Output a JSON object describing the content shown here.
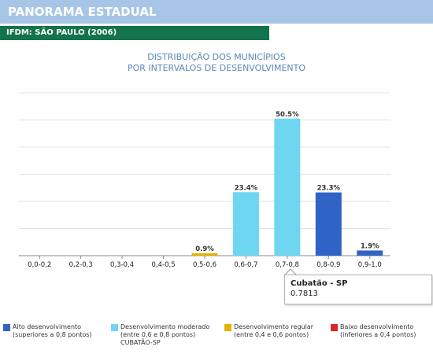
{
  "header": {
    "banner_title": "PANORAMA ESTADUAL",
    "subtitle": "IFDM: SÃO PAULO (2006)"
  },
  "chart_data": {
    "type": "bar",
    "title_lines": [
      "DISTRIBUIÇÃO DOS MUNICÍPIOS",
      "POR INTERVALOS DE DESENVOLVIMENTO"
    ],
    "categories": [
      "0,0-0,2",
      "0,2-0,3",
      "0,3-0,4",
      "0,4-0,5",
      "0,5-0,6",
      "0,6-0,7",
      "0,7-0,8",
      "0,8-0,9",
      "0,9-1,0"
    ],
    "values": [
      0,
      0,
      0,
      0,
      0.9,
      23.4,
      50.5,
      23.3,
      1.9
    ],
    "data_labels": [
      "",
      "",
      "",
      "",
      "0.9%",
      "23.4%",
      "50.5%",
      "23.3%",
      "1.9%"
    ],
    "bar_colors": [
      "#e7b100",
      "#e7b100",
      "#e7b100",
      "#e7b100",
      "#e7b100",
      "#6fd6f1",
      "#6fd6f1",
      "#2f63c6",
      "#2f63c6"
    ],
    "ylim": [
      0,
      60
    ],
    "grid": true
  },
  "tooltip": {
    "title": "Cubatão - SP",
    "value": "0.7813"
  },
  "legend": [
    {
      "color": "#2f63c6",
      "line1": "Alto desenvolvimento",
      "line2": "(superiores a 0,8 pontos)",
      "line3": ""
    },
    {
      "color": "#6fd6f1",
      "line1": "Desenvolvimento moderado",
      "line2": "(entre 0,6 e 0,8 pontos)",
      "line3": "CUBATÃO-SP"
    },
    {
      "color": "#e7b100",
      "line1": "Desenvolvimento regular",
      "line2": "(entre 0,4 e 0,6 pontos)",
      "line3": ""
    },
    {
      "color": "#d62a2a",
      "line1": "Baixo desenvolvimento",
      "line2": "(inferiores a 0,4 pontos)",
      "line3": ""
    }
  ]
}
